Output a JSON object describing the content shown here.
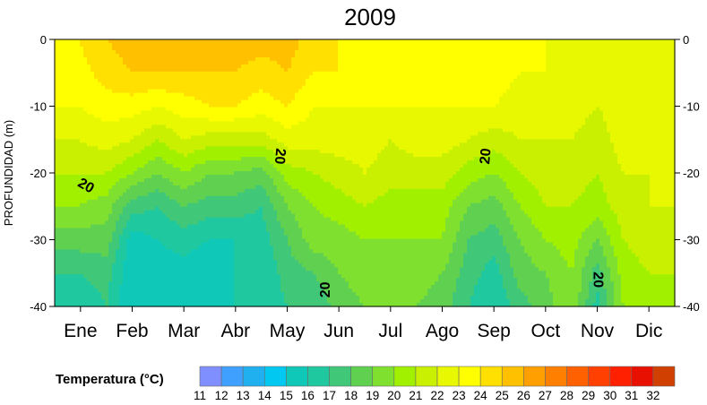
{
  "chart_data": {
    "type": "heatmap",
    "title": "2009",
    "ylabel": "PROFUNDIDAD (m)",
    "xlabel": "",
    "x_categories": [
      "Ene",
      "Feb",
      "Mar",
      "Abr",
      "May",
      "Jun",
      "Jul",
      "Ago",
      "Sep",
      "Oct",
      "Nov",
      "Dic"
    ],
    "y_ticks": [
      0,
      -10,
      -20,
      -30,
      -40
    ],
    "ylim": [
      -40,
      0
    ],
    "grid": false,
    "colorbar": {
      "title": "Temperatura (°C)",
      "levels": [
        11,
        12,
        13,
        14,
        15,
        16,
        17,
        18,
        19,
        20,
        21,
        22,
        23,
        24,
        25,
        26,
        27,
        28,
        29,
        30,
        31,
        32
      ],
      "colors": [
        "#7f8fff",
        "#40a0ff",
        "#20b0f0",
        "#00c8f0",
        "#10c8b8",
        "#20c8a0",
        "#40c878",
        "#60d050",
        "#80e030",
        "#a0f000",
        "#c8f000",
        "#e8f800",
        "#ffff00",
        "#ffe000",
        "#ffc000",
        "#ffa000",
        "#ff8000",
        "#ff6000",
        "#ff4000",
        "#ff2000",
        "#e81000",
        "#d04000"
      ]
    },
    "contour_labels": [
      "20",
      "20",
      "20",
      "20",
      "20"
    ],
    "profile_depths": [
      0,
      -5,
      -10,
      -15,
      -20,
      -25,
      -30,
      -35,
      -40
    ],
    "profiles": [
      {
        "x": -0.05,
        "t": [
          24,
          23.5,
          23,
          22,
          21,
          20,
          18.5,
          17,
          16
        ]
      },
      {
        "x": 0.5,
        "t": [
          25,
          24.5,
          23.5,
          22.5,
          21,
          19.5,
          18.5,
          17.5,
          17
        ]
      },
      {
        "x": 1.0,
        "t": [
          25.5,
          25,
          23.5,
          22,
          20,
          17.5,
          15.5,
          15,
          15
        ]
      },
      {
        "x": 1.5,
        "t": [
          25.5,
          25,
          23,
          21,
          19,
          17,
          16,
          15.5,
          15.5
        ]
      },
      {
        "x": 2.0,
        "t": [
          25.5,
          25,
          23.5,
          22,
          20,
          18,
          16.5,
          15.5,
          15
        ]
      },
      {
        "x": 2.5,
        "t": [
          25.5,
          25,
          24,
          21.5,
          19,
          17.5,
          16,
          15,
          15
        ]
      },
      {
        "x": 3.0,
        "t": [
          25.5,
          25,
          24,
          21.5,
          19,
          17.5,
          16,
          16,
          16
        ]
      },
      {
        "x": 3.5,
        "t": [
          25.5,
          24.5,
          23.5,
          21.5,
          18.5,
          17,
          16.5,
          16,
          16
        ]
      },
      {
        "x": 4.0,
        "t": [
          25.5,
          25,
          24,
          22.5,
          20.5,
          19,
          18,
          17.5,
          17
        ]
      },
      {
        "x": 4.5,
        "t": [
          24.5,
          24,
          23,
          22.5,
          21,
          20,
          19.5,
          18,
          17
        ]
      },
      {
        "x": 5.0,
        "t": [
          24,
          24,
          23,
          22.5,
          21.5,
          20.5,
          19.5,
          19,
          18.5
        ]
      },
      {
        "x": 5.5,
        "t": [
          23.5,
          23.5,
          23,
          22.5,
          22,
          21,
          20,
          19.5,
          19
        ]
      },
      {
        "x": 6.0,
        "t": [
          23.5,
          23.5,
          23,
          22,
          21.5,
          20.5,
          20,
          19.5,
          19
        ]
      },
      {
        "x": 6.5,
        "t": [
          23.5,
          23.5,
          23,
          22.5,
          21.5,
          20.5,
          20,
          19.5,
          19
        ]
      },
      {
        "x": 7.0,
        "t": [
          23.5,
          23.5,
          23,
          22.5,
          21.5,
          20.5,
          20,
          19,
          18.5
        ]
      },
      {
        "x": 7.5,
        "t": [
          23.5,
          23.5,
          23,
          22,
          20.5,
          19,
          18,
          17.5,
          17
        ]
      },
      {
        "x": 8.0,
        "t": [
          23.5,
          23.5,
          23,
          21.5,
          20,
          18.5,
          17.5,
          16.5,
          16
        ]
      },
      {
        "x": 8.5,
        "t": [
          23.5,
          23,
          22.5,
          22,
          21,
          20,
          19,
          18.5,
          17.5
        ]
      },
      {
        "x": 9.0,
        "t": [
          23,
          23,
          22.5,
          22,
          21.5,
          21,
          20,
          19,
          18.5
        ]
      },
      {
        "x": 9.5,
        "t": [
          23,
          22.5,
          22.5,
          22,
          21.5,
          21,
          20.5,
          20,
          20
        ]
      },
      {
        "x": 10.0,
        "t": [
          22.5,
          22.5,
          22,
          21.5,
          21,
          20.5,
          19,
          17.5,
          16.5
        ]
      },
      {
        "x": 10.5,
        "t": [
          22.5,
          22.5,
          22.5,
          22.5,
          22,
          21.5,
          21,
          20.5,
          20
        ]
      },
      {
        "x": 11.0,
        "t": [
          23,
          23,
          22.5,
          22.5,
          22,
          22,
          21.5,
          21,
          20.5
        ]
      },
      {
        "x": 11.5,
        "t": [
          23,
          22.5,
          22.5,
          22.5,
          22,
          22,
          21.5,
          21,
          21
        ]
      }
    ]
  }
}
